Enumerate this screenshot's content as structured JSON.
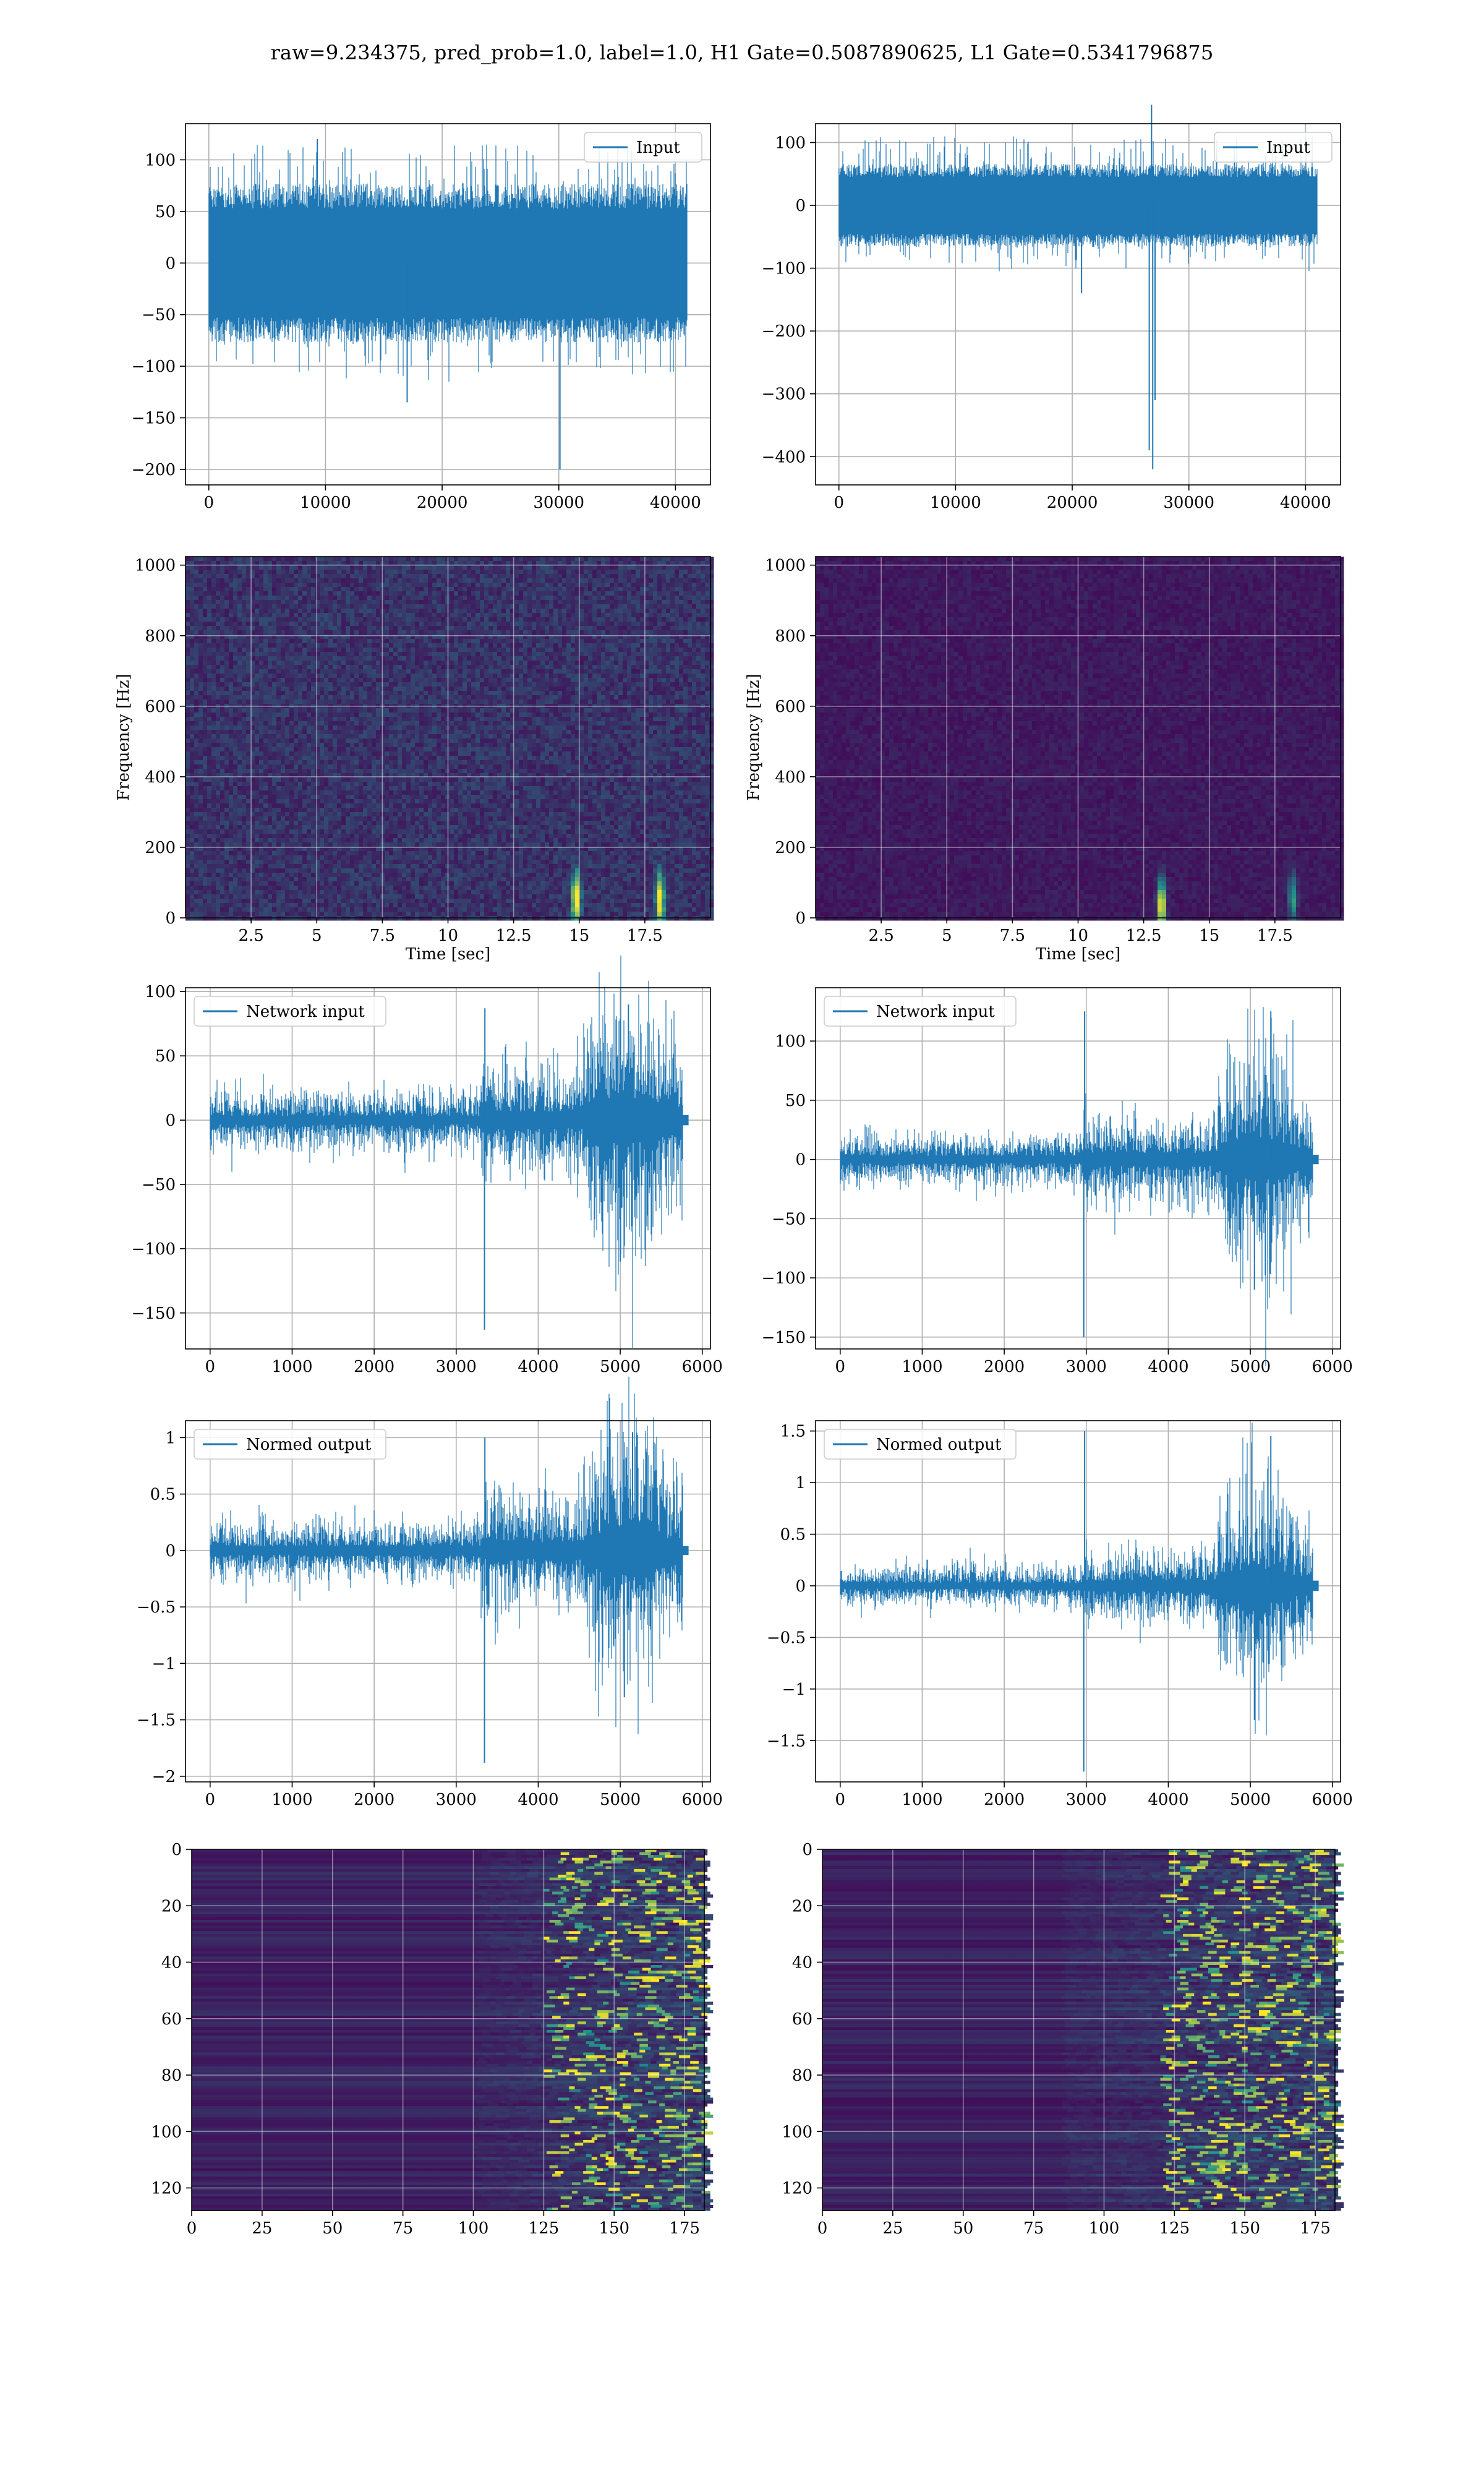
{
  "suptitle": "raw=9.234375, pred_prob=1.0, label=1.0, H1 Gate=0.5087890625, L1 Gate=0.5341796875",
  "colors": {
    "line": "#1f77b4",
    "grid": "#b0b0b0",
    "viridis_low": "#440154",
    "viridis_mid": "#21918c",
    "viridis_high": "#fde725"
  },
  "chart_data": [
    {
      "id": "h1-input",
      "type": "line",
      "legend": "Input",
      "legend_loc": "upper right",
      "xlim": [
        -2000,
        43000
      ],
      "ylim": [
        -215,
        135
      ],
      "xticks": [
        0,
        10000,
        20000,
        30000,
        40000
      ],
      "yticks": [
        -200,
        -150,
        -100,
        -50,
        0,
        50,
        100
      ],
      "x_range": [
        0,
        40960
      ],
      "band": [
        -70,
        70
      ],
      "envelope": [
        -110,
        115
      ],
      "spikes": [
        {
          "x": 30100,
          "y": -200
        },
        {
          "x": 9300,
          "y": 120
        },
        {
          "x": 17000,
          "y": -135
        }
      ],
      "grid": true
    },
    {
      "id": "l1-input",
      "type": "line",
      "legend": "Input",
      "legend_loc": "upper right",
      "xlim": [
        -2000,
        43000
      ],
      "ylim": [
        -445,
        130
      ],
      "xticks": [
        0,
        10000,
        20000,
        30000,
        40000
      ],
      "yticks": [
        -400,
        -300,
        -200,
        -100,
        0,
        100
      ],
      "x_range": [
        0,
        40960
      ],
      "band": [
        -60,
        60
      ],
      "envelope": [
        -100,
        110
      ],
      "spikes": [
        {
          "x": 26600,
          "y": -390
        },
        {
          "x": 26900,
          "y": -420
        },
        {
          "x": 27100,
          "y": -310
        },
        {
          "x": 26800,
          "y": 160
        },
        {
          "x": 20800,
          "y": -140
        }
      ],
      "grid": true
    },
    {
      "id": "h1-spectrogram",
      "type": "heatmap",
      "colormap": "viridis",
      "xlim": [
        0,
        20
      ],
      "ylim": [
        0,
        1024
      ],
      "xticks": [
        2.5,
        5.0,
        7.5,
        10.0,
        12.5,
        15.0,
        17.5
      ],
      "yticks": [
        0,
        200,
        400,
        600,
        800,
        1000
      ],
      "xlabel": "Time [sec]",
      "ylabel": "Frequency [Hz]",
      "background_level": 0.2,
      "hotspots": [
        {
          "t": 14.8,
          "f": 60,
          "level": 1.0
        },
        {
          "t": 18.0,
          "f": 60,
          "level": 0.9
        }
      ],
      "grid": true
    },
    {
      "id": "l1-spectrogram",
      "type": "heatmap",
      "colormap": "viridis",
      "xlim": [
        0,
        20
      ],
      "ylim": [
        0,
        1024
      ],
      "xticks": [
        2.5,
        5.0,
        7.5,
        10.0,
        12.5,
        15.0,
        17.5
      ],
      "yticks": [
        0,
        200,
        400,
        600,
        800,
        1000
      ],
      "xlabel": "Time [sec]",
      "ylabel": "Frequency [Hz]",
      "background_level": 0.1,
      "hotspots": [
        {
          "t": 13.1,
          "f": 40,
          "level": 1.0
        },
        {
          "t": 18.1,
          "f": 60,
          "level": 0.5
        }
      ],
      "grid": true
    },
    {
      "id": "h1-network-input",
      "type": "line",
      "legend": "Network input",
      "legend_loc": "upper left",
      "xlim": [
        -300,
        6100
      ],
      "ylim": [
        -178,
        103
      ],
      "xticks": [
        0,
        1000,
        2000,
        3000,
        4000,
        5000,
        6000
      ],
      "yticks": [
        -150,
        -100,
        -50,
        0,
        50,
        100
      ],
      "x_range": [
        0,
        5760
      ],
      "segments": [
        {
          "x0": 0,
          "x1": 3300,
          "amp": 13
        },
        {
          "x0": 3300,
          "x1": 4550,
          "amp": 25
        },
        {
          "x0": 4550,
          "x1": 5750,
          "amp": 70
        }
      ],
      "spikes": [
        {
          "x": 3345,
          "y": -163
        },
        {
          "x": 3350,
          "y": 87
        },
        {
          "x": 5000,
          "y": -110
        },
        {
          "x": 5100,
          "y": 90
        }
      ],
      "tail": {
        "x0": 5750,
        "x1": 5830,
        "amp": 4
      },
      "grid": true
    },
    {
      "id": "l1-network-input",
      "type": "line",
      "legend": "Network input",
      "legend_loc": "upper left",
      "xlim": [
        -300,
        6100
      ],
      "ylim": [
        -160,
        145
      ],
      "xticks": [
        0,
        1000,
        2000,
        3000,
        4000,
        5000,
        6000
      ],
      "yticks": [
        -150,
        -100,
        -50,
        0,
        50,
        100
      ],
      "x_range": [
        0,
        5760
      ],
      "segments": [
        {
          "x0": 0,
          "x1": 2950,
          "amp": 12
        },
        {
          "x0": 2950,
          "x1": 4600,
          "amp": 22
        },
        {
          "x0": 4600,
          "x1": 5750,
          "amp": 65
        }
      ],
      "spikes": [
        {
          "x": 2970,
          "y": -150
        },
        {
          "x": 2980,
          "y": 125
        },
        {
          "x": 5050,
          "y": -110
        },
        {
          "x": 5250,
          "y": 125
        }
      ],
      "tail": {
        "x0": 5750,
        "x1": 5830,
        "amp": 4
      },
      "grid": true
    },
    {
      "id": "h1-normed-output",
      "type": "line",
      "legend": "Normed output",
      "legend_loc": "upper left",
      "xlim": [
        -300,
        6100
      ],
      "ylim": [
        -2.05,
        1.15
      ],
      "xticks": [
        0,
        1000,
        2000,
        3000,
        4000,
        5000,
        6000
      ],
      "yticks": [
        -2.0,
        -1.5,
        -1.0,
        -0.5,
        0.0,
        0.5,
        1.0
      ],
      "x_range": [
        0,
        5760
      ],
      "segments": [
        {
          "x0": 0,
          "x1": 3300,
          "amp": 0.15
        },
        {
          "x0": 3300,
          "x1": 4550,
          "amp": 0.28
        },
        {
          "x0": 4550,
          "x1": 5750,
          "amp": 0.75
        }
      ],
      "spikes": [
        {
          "x": 3345,
          "y": -1.88
        },
        {
          "x": 3350,
          "y": 1.0
        },
        {
          "x": 5050,
          "y": -1.3
        },
        {
          "x": 5150,
          "y": 1.05
        }
      ],
      "tail": {
        "x0": 5750,
        "x1": 5830,
        "amp": 0.04
      },
      "grid": true
    },
    {
      "id": "l1-normed-output",
      "type": "line",
      "legend": "Normed output",
      "legend_loc": "upper left",
      "xlim": [
        -300,
        6100
      ],
      "ylim": [
        -1.9,
        1.6
      ],
      "xticks": [
        0,
        1000,
        2000,
        3000,
        4000,
        5000,
        6000
      ],
      "yticks": [
        -1.5,
        -1.0,
        -0.5,
        0.0,
        0.5,
        1.0,
        1.5
      ],
      "x_range": [
        0,
        5760
      ],
      "segments": [
        {
          "x0": 0,
          "x1": 2950,
          "amp": 0.11
        },
        {
          "x0": 2950,
          "x1": 4600,
          "amp": 0.2
        },
        {
          "x0": 4600,
          "x1": 5750,
          "amp": 0.65
        }
      ],
      "spikes": [
        {
          "x": 2970,
          "y": -1.8
        },
        {
          "x": 2980,
          "y": 1.5
        },
        {
          "x": 5050,
          "y": -1.3
        },
        {
          "x": 5250,
          "y": 1.45
        }
      ],
      "tail": {
        "x0": 5750,
        "x1": 5830,
        "amp": 0.05
      },
      "grid": true
    },
    {
      "id": "h1-feature-map",
      "type": "heatmap",
      "colormap": "viridis",
      "xlim": [
        0,
        182
      ],
      "ylim": [
        128,
        0
      ],
      "xticks": [
        0,
        25,
        50,
        75,
        100,
        125,
        150,
        175
      ],
      "yticks": [
        0,
        20,
        40,
        60,
        80,
        100,
        120
      ],
      "active_from": 100,
      "peak_from": 125,
      "grid": true
    },
    {
      "id": "l1-feature-map",
      "type": "heatmap",
      "colormap": "viridis",
      "xlim": [
        0,
        182
      ],
      "ylim": [
        128,
        0
      ],
      "xticks": [
        0,
        25,
        50,
        75,
        100,
        125,
        150,
        175
      ],
      "yticks": [
        0,
        20,
        40,
        60,
        80,
        100,
        120
      ],
      "active_from": 85,
      "peak_from": 120,
      "grid": true
    }
  ]
}
